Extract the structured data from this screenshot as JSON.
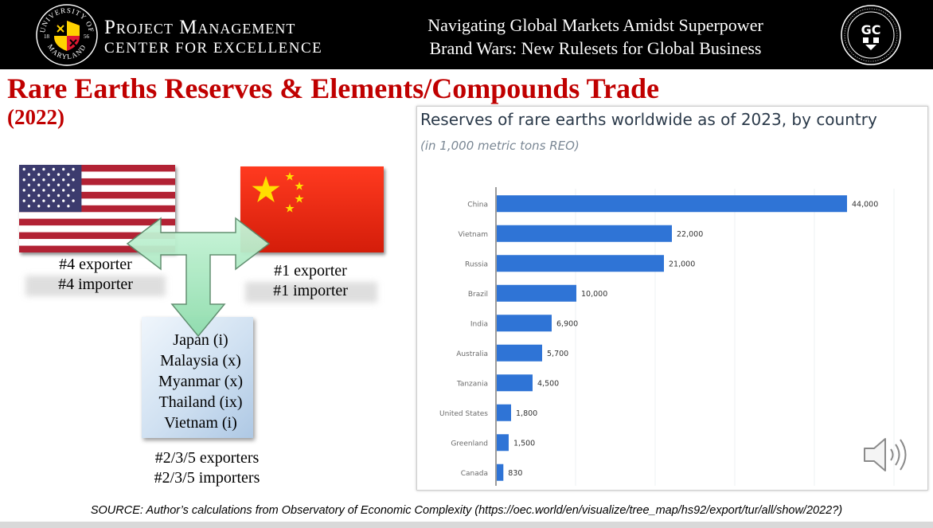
{
  "header": {
    "seal_top_text": "UNIVERSITY OF",
    "seal_bottom_text": "MARYLAND",
    "seal_year_left": "18",
    "seal_year_right": "56",
    "org_line1": "Project Management",
    "org_line2": "CENTER FOR EXCELLENCE",
    "title_line1": "Navigating Global Markets Amidst Superpower",
    "title_line2": "Brand Wars: New Rulesets for Global Business",
    "right_logo_text": "GC"
  },
  "slide": {
    "title": "Rare Earths Reserves & Elements/Compounds Trade",
    "year": "(2022)"
  },
  "diagram": {
    "us_line1": "#4 exporter",
    "us_line2": "#4 importer",
    "cn_line1": "#1 exporter",
    "cn_line2": "#1 importer",
    "countries": [
      "Japan (i)",
      "Malaysia (x)",
      "Myanmar (x)",
      "Thailand (ix)",
      "Vietnam (i)"
    ],
    "bottom_line1": "#2/3/5 exporters",
    "bottom_line2": "#2/3/5 importers",
    "colors": {
      "us_red": "#b22234",
      "us_blue": "#3c3b6e",
      "cn_red": "#de2910",
      "cn_yellow": "#ffde00",
      "arrow_green": "#a8e8c0"
    }
  },
  "chart_data": {
    "type": "bar",
    "orientation": "horizontal",
    "title": "Reserves of rare earths worldwide as of 2023, by country",
    "subtitle": "(in 1,000 metric tons REO)",
    "categories": [
      "China",
      "Vietnam",
      "Russia",
      "Brazil",
      "India",
      "Australia",
      "Tanzania",
      "United States",
      "Greenland",
      "Canada"
    ],
    "values": [
      44000,
      22000,
      21000,
      10000,
      6900,
      5700,
      4500,
      1800,
      1500,
      830
    ],
    "value_labels": [
      "44,000",
      "22,000",
      "21,000",
      "10,000",
      "6,900",
      "5,700",
      "4,500",
      "1,800",
      "1,500",
      "830"
    ],
    "xlim": [
      0,
      50000
    ],
    "grid": true,
    "bar_color": "#2f74d6"
  },
  "footer": {
    "source": "SOURCE: Author’s calculations from Observatory of Economic Complexity (https://oec.world/en/visualize/tree_map/hs92/export/tur/all/show/2022?)"
  }
}
